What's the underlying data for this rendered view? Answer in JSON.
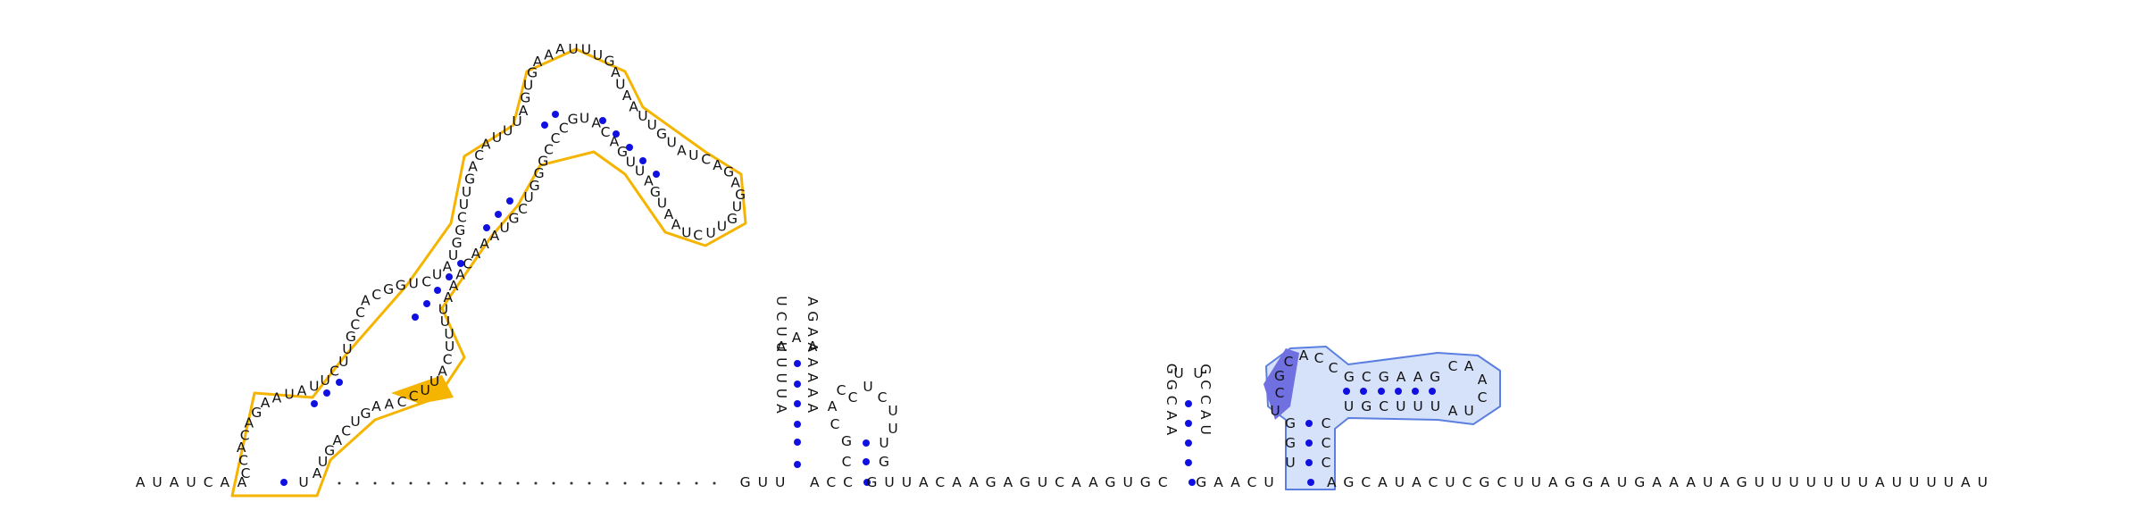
{
  "colors": {
    "domain_1_fill": "none",
    "domain_1_stroke": "#f5b400",
    "domain_1_highlight": "#f5b400",
    "domain_2_fill": "#d6e2fa",
    "domain_2_stroke": "#5b7fe0",
    "domain_2_highlight": "#7070e0",
    "base_pair_dot": "#1010e0",
    "text": "#111111"
  },
  "backbone": {
    "left_arm": "AUAUCAA",
    "left_arm_end": "U",
    "gap_after_first_hairpin": "GUU",
    "between_small_hairpins": "ACC",
    "after_small_hairpins": "GUUACAAGAGUCAAGUGC",
    "between_hairpins": "GAACU",
    "tail": "AGCAUACUCGCUUAGGAUGAAAUAGUUUUUUUAUUUUAU"
  },
  "hairpin_a": {
    "left_strand_bottom_to_top": "UCUUUUUA",
    "right_strand_bottom_to_top": "AGAAAAAA",
    "loop": [
      "A",
      "A",
      "A"
    ]
  },
  "hairpin_b": {
    "left_strand": [
      "C",
      "G",
      "C",
      "A",
      "C",
      "U"
    ],
    "loop": [
      "C",
      "U",
      "C"
    ],
    "right_strand": [
      "U",
      "U",
      "U",
      "G",
      "G"
    ]
  },
  "hairpin_c": {
    "left_strand_bottom_to_top": "GGCAA",
    "right_strand_bottom_to_top": "GCCAU",
    "loop": [
      "U",
      "U"
    ]
  },
  "domain_2": {
    "stem_left": [
      "U",
      "G",
      "G",
      "U"
    ],
    "stem_right": [
      "C",
      "C",
      "C",
      "A"
    ],
    "top_left": [
      "C",
      "G",
      "C",
      "A",
      "C",
      "C"
    ],
    "upper_strand": "GCGAAG",
    "lower_strand": "UGCUUU",
    "loop": [
      "C",
      "A",
      "A",
      "C",
      "U",
      "A"
    ]
  },
  "domain_1": {
    "labels": [
      "C",
      "C",
      "A",
      "C",
      "A",
      "G",
      "A",
      "A",
      "U",
      "A",
      "U",
      "U",
      "C",
      "U",
      "U",
      "G",
      "C",
      "C",
      "A",
      "C",
      "G",
      "G",
      "U",
      "C",
      "U",
      "A",
      "U",
      "G",
      "G",
      "C",
      "U",
      "U",
      "G",
      "A",
      "C",
      "A",
      "U",
      "U",
      "U",
      "A",
      "G",
      "U",
      "G",
      "A",
      "A",
      "A",
      "U",
      "U",
      "U",
      "G",
      "A",
      "U",
      "A",
      "A",
      "U",
      "U",
      "G",
      "U",
      "A",
      "U",
      "C",
      "A",
      "G",
      "A",
      "G",
      "U",
      "G",
      "U",
      "U",
      "C",
      "U",
      "A",
      "A",
      "U",
      "G",
      "A",
      "U",
      "U",
      "G",
      "A",
      "C",
      "A",
      "U",
      "G",
      "C",
      "C",
      "C",
      "G",
      "G",
      "G",
      "U",
      "C",
      "G",
      "U",
      "A",
      "A",
      "A",
      "C",
      "A",
      "A",
      "A",
      "U",
      "U",
      "U",
      "U",
      "C",
      "A",
      "U",
      "U",
      "C",
      "C",
      "A",
      "A",
      "G",
      "U",
      "C",
      "A",
      "G",
      "U",
      "A"
    ]
  }
}
